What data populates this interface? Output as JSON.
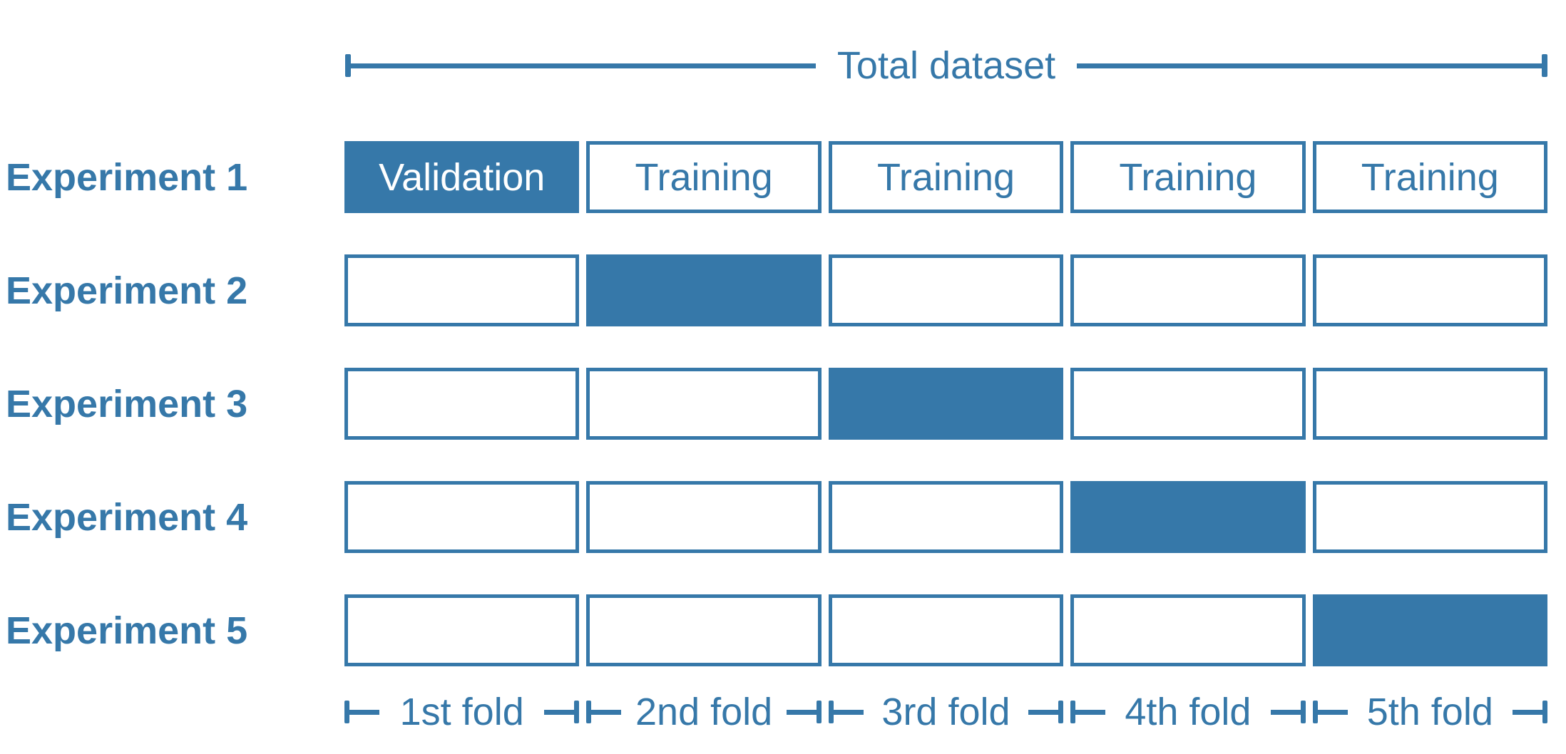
{
  "colors": {
    "accent_blue": "#3678A9",
    "filled_cell_text": "#ffffff",
    "background": "#ffffff"
  },
  "header": {
    "label": "Total dataset"
  },
  "experiments": [
    {
      "label": "Experiment 1",
      "cells": [
        {
          "filled": true,
          "text": "Validation"
        },
        {
          "filled": false,
          "text": "Training"
        },
        {
          "filled": false,
          "text": "Training"
        },
        {
          "filled": false,
          "text": "Training"
        },
        {
          "filled": false,
          "text": "Training"
        }
      ]
    },
    {
      "label": "Experiment 2",
      "cells": [
        {
          "filled": false,
          "text": ""
        },
        {
          "filled": true,
          "text": ""
        },
        {
          "filled": false,
          "text": ""
        },
        {
          "filled": false,
          "text": ""
        },
        {
          "filled": false,
          "text": ""
        }
      ]
    },
    {
      "label": "Experiment 3",
      "cells": [
        {
          "filled": false,
          "text": ""
        },
        {
          "filled": false,
          "text": ""
        },
        {
          "filled": true,
          "text": ""
        },
        {
          "filled": false,
          "text": ""
        },
        {
          "filled": false,
          "text": ""
        }
      ]
    },
    {
      "label": "Experiment 4",
      "cells": [
        {
          "filled": false,
          "text": ""
        },
        {
          "filled": false,
          "text": ""
        },
        {
          "filled": false,
          "text": ""
        },
        {
          "filled": true,
          "text": ""
        },
        {
          "filled": false,
          "text": ""
        }
      ]
    },
    {
      "label": "Experiment 5",
      "cells": [
        {
          "filled": false,
          "text": ""
        },
        {
          "filled": false,
          "text": ""
        },
        {
          "filled": false,
          "text": ""
        },
        {
          "filled": false,
          "text": ""
        },
        {
          "filled": true,
          "text": ""
        }
      ]
    }
  ],
  "folds": [
    {
      "label": "1st fold"
    },
    {
      "label": "2nd fold"
    },
    {
      "label": "3rd fold"
    },
    {
      "label": "4th fold"
    },
    {
      "label": "5th fold"
    }
  ]
}
